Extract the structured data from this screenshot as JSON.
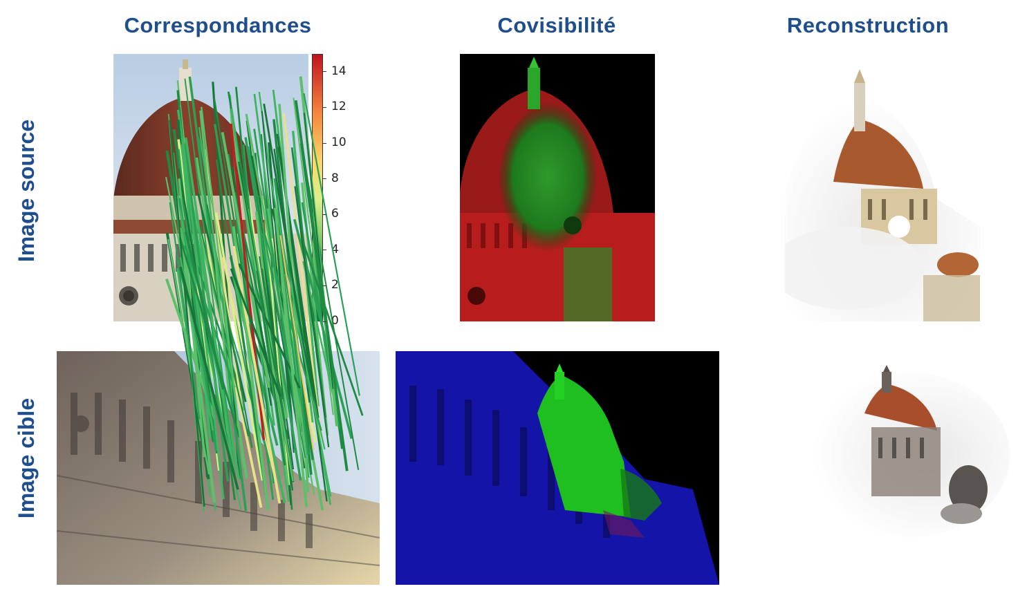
{
  "columns": {
    "correspondences": "Correspondances",
    "covisibility": "Covisibilité",
    "reconstruction": "Reconstruction"
  },
  "rows": {
    "source": "Image source",
    "target": "Image cible"
  },
  "colorbar": {
    "ticks": [
      "14",
      "12",
      "10",
      "8",
      "6",
      "4",
      "2",
      "0"
    ],
    "range": [
      0,
      15
    ],
    "colors": [
      "#0f7a3a",
      "#5fb85c",
      "#d9ef8b",
      "#fdd56a",
      "#f4863d",
      "#c1121f"
    ]
  },
  "colors": {
    "title_blue": "#1f4e8c",
    "covis_red": "#d11a1a",
    "covis_green": "#1fcf1f",
    "covis_blue": "#1a1ac8"
  }
}
